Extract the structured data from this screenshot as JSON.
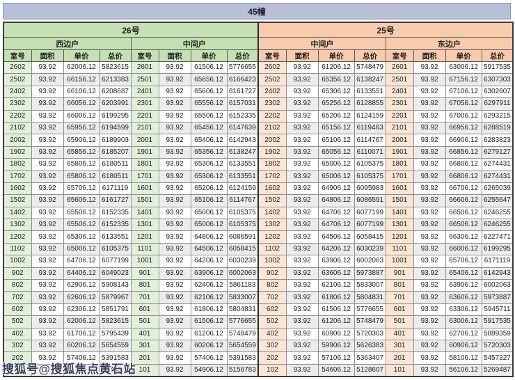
{
  "title": "45幢",
  "watermark": "搜狐号@搜狐焦点黄石站",
  "columns": [
    "室号",
    "面积",
    "单价",
    "总价"
  ],
  "colors": {
    "title_band": "#b9bfd9",
    "green_header": "#c5e0b3",
    "green_room_tint": "#e2efd9",
    "orange_header": "#f7cbac",
    "orange_room_tint": "#fbe5d5",
    "row_stripe": "#ececec"
  },
  "buildings": [
    {
      "name": "26号",
      "theme": "green",
      "sections": [
        {
          "name": "西边户",
          "rows": [
            [
              "2602",
              "93.92",
              "62006.12",
              "5823615"
            ],
            [
              "2502",
              "93.92",
              "66156.12",
              "6213383"
            ],
            [
              "2402",
              "93.92",
              "66106.12",
              "6208687"
            ],
            [
              "2302",
              "93.92",
              "66056.12",
              "6203991"
            ],
            [
              "2202",
              "93.92",
              "66006.12",
              "6199295"
            ],
            [
              "2102",
              "93.92",
              "65956.12",
              "6194599"
            ],
            [
              "2002",
              "93.92",
              "65906.12",
              "6189903"
            ],
            [
              "1902",
              "93.92",
              "65856.12",
              "6185207"
            ],
            [
              "1802",
              "93.92",
              "65806.12",
              "6180511"
            ],
            [
              "1702",
              "93.92",
              "65806.12",
              "6180511"
            ],
            [
              "1602",
              "93.92",
              "65706.12",
              "6171119"
            ],
            [
              "1502",
              "93.92",
              "65606.12",
              "6161727"
            ],
            [
              "1402",
              "93.92",
              "65506.12",
              "6152335"
            ],
            [
              "1302",
              "93.92",
              "65506.12",
              "6152335"
            ],
            [
              "1202",
              "93.92",
              "65306.12",
              "6133551"
            ],
            [
              "1102",
              "93.92",
              "65006.12",
              "6105375"
            ],
            [
              "1002",
              "93.92",
              "64706.12",
              "6077199"
            ],
            [
              "902",
              "93.92",
              "64406.12",
              "6049023"
            ],
            [
              "802",
              "93.92",
              "62906.12",
              "5908143"
            ],
            [
              "702",
              "93.92",
              "62606.12",
              "5879967"
            ],
            [
              "602",
              "93.92",
              "62306.12",
              "5851791"
            ],
            [
              "502",
              "93.92",
              "62006.12",
              "5823615"
            ],
            [
              "402",
              "93.92",
              "61706.12",
              "5795439"
            ],
            [
              "302",
              "93.92",
              "60206.12",
              "5654559"
            ],
            [
              "202",
              "93.92",
              "57406.12",
              "5391583"
            ],
            [
              "",
              "",
              "",
              "743"
            ]
          ]
        },
        {
          "name": "中间户",
          "rows": [
            [
              "2601",
              "93.92",
              "61506.12",
              "5776655"
            ],
            [
              "2501",
              "93.92",
              "65656.12",
              "6166423"
            ],
            [
              "2401",
              "93.92",
              "65606.12",
              "6161727"
            ],
            [
              "2301",
              "93.92",
              "65556.12",
              "6157031"
            ],
            [
              "2201",
              "93.92",
              "65506.12",
              "6152335"
            ],
            [
              "2101",
              "93.92",
              "65456.12",
              "6147639"
            ],
            [
              "2001",
              "93.92",
              "65406.12",
              "6142943"
            ],
            [
              "1901",
              "93.92",
              "65356.12",
              "6138247"
            ],
            [
              "1801",
              "93.92",
              "65306.12",
              "6133551"
            ],
            [
              "1701",
              "93.92",
              "65306.12",
              "6133551"
            ],
            [
              "1601",
              "93.92",
              "65206.12",
              "6124159"
            ],
            [
              "1501",
              "93.92",
              "65106.12",
              "6114767"
            ],
            [
              "1401",
              "93.92",
              "65006.12",
              "6105375"
            ],
            [
              "1301",
              "93.92",
              "65006.12",
              "6105375"
            ],
            [
              "1201",
              "93.92",
              "64806.12",
              "6086591"
            ],
            [
              "1101",
              "93.92",
              "64506.12",
              "6058415"
            ],
            [
              "1001",
              "93.92",
              "64206.12",
              "6030239"
            ],
            [
              "901",
              "93.92",
              "63906.12",
              "6002063"
            ],
            [
              "801",
              "93.92",
              "62406.12",
              "5861183"
            ],
            [
              "701",
              "93.92",
              "62106.12",
              "5833007"
            ],
            [
              "601",
              "93.92",
              "61806.12",
              "5804831"
            ],
            [
              "501",
              "93.92",
              "61506.12",
              "5776655"
            ],
            [
              "401",
              "93.92",
              "61206.12",
              "5748479"
            ],
            [
              "301",
              "93.92",
              "60206.12",
              "5654559"
            ],
            [
              "201",
              "93.92",
              "57406.12",
              "5391583"
            ],
            [
              "101",
              "93.92",
              "54906.12",
              "5156783"
            ]
          ]
        }
      ]
    },
    {
      "name": "25号",
      "theme": "orange",
      "sections": [
        {
          "name": "中间户",
          "rows": [
            [
              "2602",
              "93.92",
              "61206.12",
              "5748479"
            ],
            [
              "2502",
              "93.92",
              "65356.12",
              "6138247"
            ],
            [
              "2402",
              "93.92",
              "65306.12",
              "6133551"
            ],
            [
              "2302",
              "93.92",
              "65256.12",
              "6128855"
            ],
            [
              "2202",
              "93.92",
              "65206.12",
              "6124159"
            ],
            [
              "2102",
              "93.92",
              "65156.12",
              "6119463"
            ],
            [
              "2002",
              "93.92",
              "65106.12",
              "6114767"
            ],
            [
              "1902",
              "93.92",
              "65056.12",
              "6110071"
            ],
            [
              "1802",
              "93.92",
              "65006.12",
              "6105375"
            ],
            [
              "1702",
              "93.92",
              "65006.12",
              "6105375"
            ],
            [
              "1602",
              "93.92",
              "64906.12",
              "6095983"
            ],
            [
              "1502",
              "93.92",
              "64806.12",
              "6086591"
            ],
            [
              "1402",
              "93.92",
              "64706.12",
              "6077199"
            ],
            [
              "1302",
              "93.92",
              "64706.12",
              "6077199"
            ],
            [
              "1202",
              "93.92",
              "64506.12",
              "6058415"
            ],
            [
              "1102",
              "93.92",
              "64206.12",
              "6030239"
            ],
            [
              "1002",
              "93.92",
              "63906.12",
              "6002063"
            ],
            [
              "902",
              "93.92",
              "63606.12",
              "5973887"
            ],
            [
              "802",
              "93.92",
              "62106.12",
              "5833007"
            ],
            [
              "702",
              "93.92",
              "61806.12",
              "5804831"
            ],
            [
              "602",
              "93.92",
              "61506.12",
              "5776655"
            ],
            [
              "502",
              "93.92",
              "61206.12",
              "5748479"
            ],
            [
              "402",
              "93.92",
              "60906.12",
              "5720303"
            ],
            [
              "302",
              "93.92",
              "59906.12",
              "5626383"
            ],
            [
              "202",
              "93.92",
              "57106.12",
              "5363407"
            ],
            [
              "102",
              "93.92",
              "54606.12",
              "5128607"
            ]
          ]
        },
        {
          "name": "东边户",
          "rows": [
            [
              "2601",
              "93.92",
              "63006.12",
              "5917535"
            ],
            [
              "2501",
              "93.92",
              "67156.12",
              "6307303"
            ],
            [
              "2401",
              "93.92",
              "67106.12",
              "6302607"
            ],
            [
              "2301",
              "93.92",
              "67056.12",
              "6297911"
            ],
            [
              "2201",
              "93.92",
              "67006.12",
              "6293215"
            ],
            [
              "2101",
              "93.92",
              "66956.12",
              "6288519"
            ],
            [
              "2001",
              "93.92",
              "66906.12",
              "6283823"
            ],
            [
              "1901",
              "93.92",
              "66856.12",
              "6279127"
            ],
            [
              "1801",
              "93.92",
              "66806.12",
              "6274431"
            ],
            [
              "1701",
              "93.92",
              "66806.12",
              "6274431"
            ],
            [
              "1601",
              "93.92",
              "66706.12",
              "6265039"
            ],
            [
              "1501",
              "93.92",
              "66606.12",
              "6255647"
            ],
            [
              "1401",
              "93.92",
              "66506.12",
              "6246255"
            ],
            [
              "1301",
              "93.92",
              "66506.12",
              "6246255"
            ],
            [
              "1201",
              "93.92",
              "66306.12",
              "6227471"
            ],
            [
              "1101",
              "93.92",
              "66006.12",
              "6199295"
            ],
            [
              "1001",
              "93.92",
              "65706.12",
              "6171119"
            ],
            [
              "901",
              "93.92",
              "65406.12",
              "6142943"
            ],
            [
              "801",
              "93.92",
              "63906.12",
              "6002063"
            ],
            [
              "701",
              "93.92",
              "63606.12",
              "5973887"
            ],
            [
              "601",
              "93.92",
              "63306.12",
              "5945711"
            ],
            [
              "501",
              "93.92",
              "63006.12",
              "5917535"
            ],
            [
              "401",
              "93.92",
              "62706.12",
              "5889359"
            ],
            [
              "301",
              "93.92",
              "60906.12",
              "5720303"
            ],
            [
              "201",
              "93.92",
              "58106.12",
              "5457327"
            ],
            [
              "101",
              "93.92",
              "56106.12",
              "5269487"
            ]
          ]
        }
      ]
    }
  ]
}
